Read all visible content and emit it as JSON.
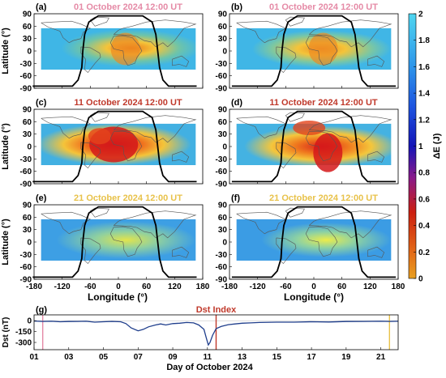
{
  "panels": [
    {
      "label": "(a)",
      "title": "01 October 2024 12:00 UT",
      "title_color": "#e58aa6",
      "ylabel": "Latitude (°)",
      "show_ylabel": true,
      "show_xticks": false,
      "pattern": "oct01_a"
    },
    {
      "label": "(b)",
      "title": "01 October 2024 12:00 UT",
      "title_color": "#e58aa6",
      "ylabel": "",
      "show_ylabel": false,
      "show_xticks": false,
      "pattern": "oct01_b"
    },
    {
      "label": "(c)",
      "title": "11 October 2024 12:00 UT",
      "title_color": "#c0392b",
      "ylabel": "Latitude (°)",
      "show_ylabel": true,
      "show_xticks": false,
      "pattern": "oct11_c"
    },
    {
      "label": "(d)",
      "title": "11 October 2024 12:00 UT",
      "title_color": "#c0392b",
      "ylabel": "",
      "show_ylabel": false,
      "show_xticks": false,
      "pattern": "oct11_d"
    },
    {
      "label": "(e)",
      "title": "21 October 2024 12:00 UT",
      "title_color": "#e8c24a",
      "ylabel": "Latitude (°)",
      "show_ylabel": true,
      "show_xticks": true,
      "pattern": "oct21_e"
    },
    {
      "label": "(f)",
      "title": "21 October 2024 12:00 UT",
      "title_color": "#e8c24a",
      "ylabel": "",
      "show_ylabel": false,
      "show_xticks": true,
      "pattern": "oct21_f"
    }
  ],
  "map_axes": {
    "xlabel": "Longitude (°)",
    "xticks": [
      -180,
      -120,
      -60,
      0,
      60,
      120,
      180
    ],
    "yticks": [
      90,
      60,
      30,
      0,
      -30,
      -60,
      -90
    ],
    "xlim": [
      -180,
      180
    ],
    "ylim": [
      -90,
      90
    ],
    "data_lat_range": [
      -45,
      55
    ]
  },
  "colorbar": {
    "label": "ΔE (J)",
    "ticks": [
      0,
      0.2,
      0.4,
      0.6,
      0.8,
      1,
      1.2,
      1.4,
      1.6,
      1.8,
      2
    ],
    "range": [
      0,
      2
    ]
  },
  "chart_data": {
    "type": "line",
    "title": "Dst Index",
    "xlabel": "Day of October 2024",
    "ylabel": "Dst (nT)",
    "xticks": [
      "01",
      "03",
      "05",
      "07",
      "09",
      "11",
      "13",
      "15",
      "17",
      "19",
      "21"
    ],
    "yticks": [
      0,
      -150,
      -300
    ],
    "xlim": [
      1,
      22
    ],
    "ylim": [
      -400,
      80
    ],
    "series": [
      {
        "x": [
          1,
          1.5,
          2,
          2.5,
          3,
          3.5,
          4,
          4.5,
          5,
          5.5,
          6,
          6.3,
          6.6,
          7,
          7.3,
          7.6,
          8,
          8.3,
          8.6,
          9,
          9.4,
          9.8,
          10.2,
          10.5,
          10.8,
          10.95,
          11.05,
          11.15,
          11.3,
          11.5,
          11.8,
          12.2,
          12.6,
          13,
          13.5,
          14,
          15,
          16,
          17,
          18,
          19,
          20,
          21,
          21.5,
          22
        ],
        "y": [
          -5,
          -10,
          -8,
          -15,
          -12,
          -10,
          -8,
          -20,
          -15,
          -10,
          -15,
          -40,
          -100,
          -140,
          -120,
          -85,
          -60,
          -45,
          -60,
          -40,
          -35,
          -25,
          -30,
          -60,
          -120,
          -250,
          -335,
          -300,
          -200,
          -110,
          -80,
          -55,
          -45,
          -35,
          -30,
          -25,
          -20,
          -20,
          -15,
          -18,
          -12,
          -10,
          -8,
          -10,
          -8
        ]
      }
    ],
    "markers": [
      {
        "day": 1.5,
        "color": "#e58aa6"
      },
      {
        "day": 11.5,
        "color": "#c0392b"
      },
      {
        "day": 21.5,
        "color": "#e8c24a"
      }
    ]
  }
}
